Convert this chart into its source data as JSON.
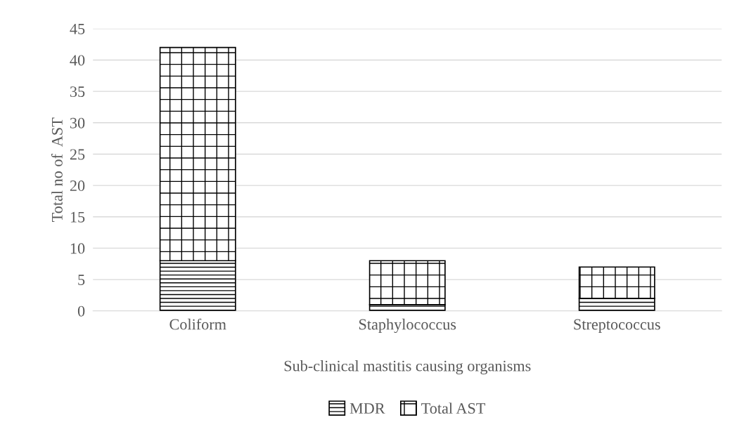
{
  "chart_data": {
    "type": "bar",
    "stacked": true,
    "xlabel": "Sub-clinical mastitis causing organisms",
    "ylabel": "Total no of  AST",
    "categories": [
      "Coliform",
      "Staphylococcus",
      "Streptococcus"
    ],
    "series": [
      {
        "name": "MDR",
        "color": "#000000",
        "values": [
          8,
          1,
          2
        ]
      },
      {
        "name": "Total AST",
        "color": "#000000",
        "values": [
          34,
          7,
          5
        ]
      }
    ],
    "ylim": [
      0,
      45
    ],
    "yticks": [
      0,
      5,
      10,
      15,
      20,
      25,
      30,
      35,
      40,
      45
    ],
    "grid": "y",
    "legend": "bottom"
  }
}
